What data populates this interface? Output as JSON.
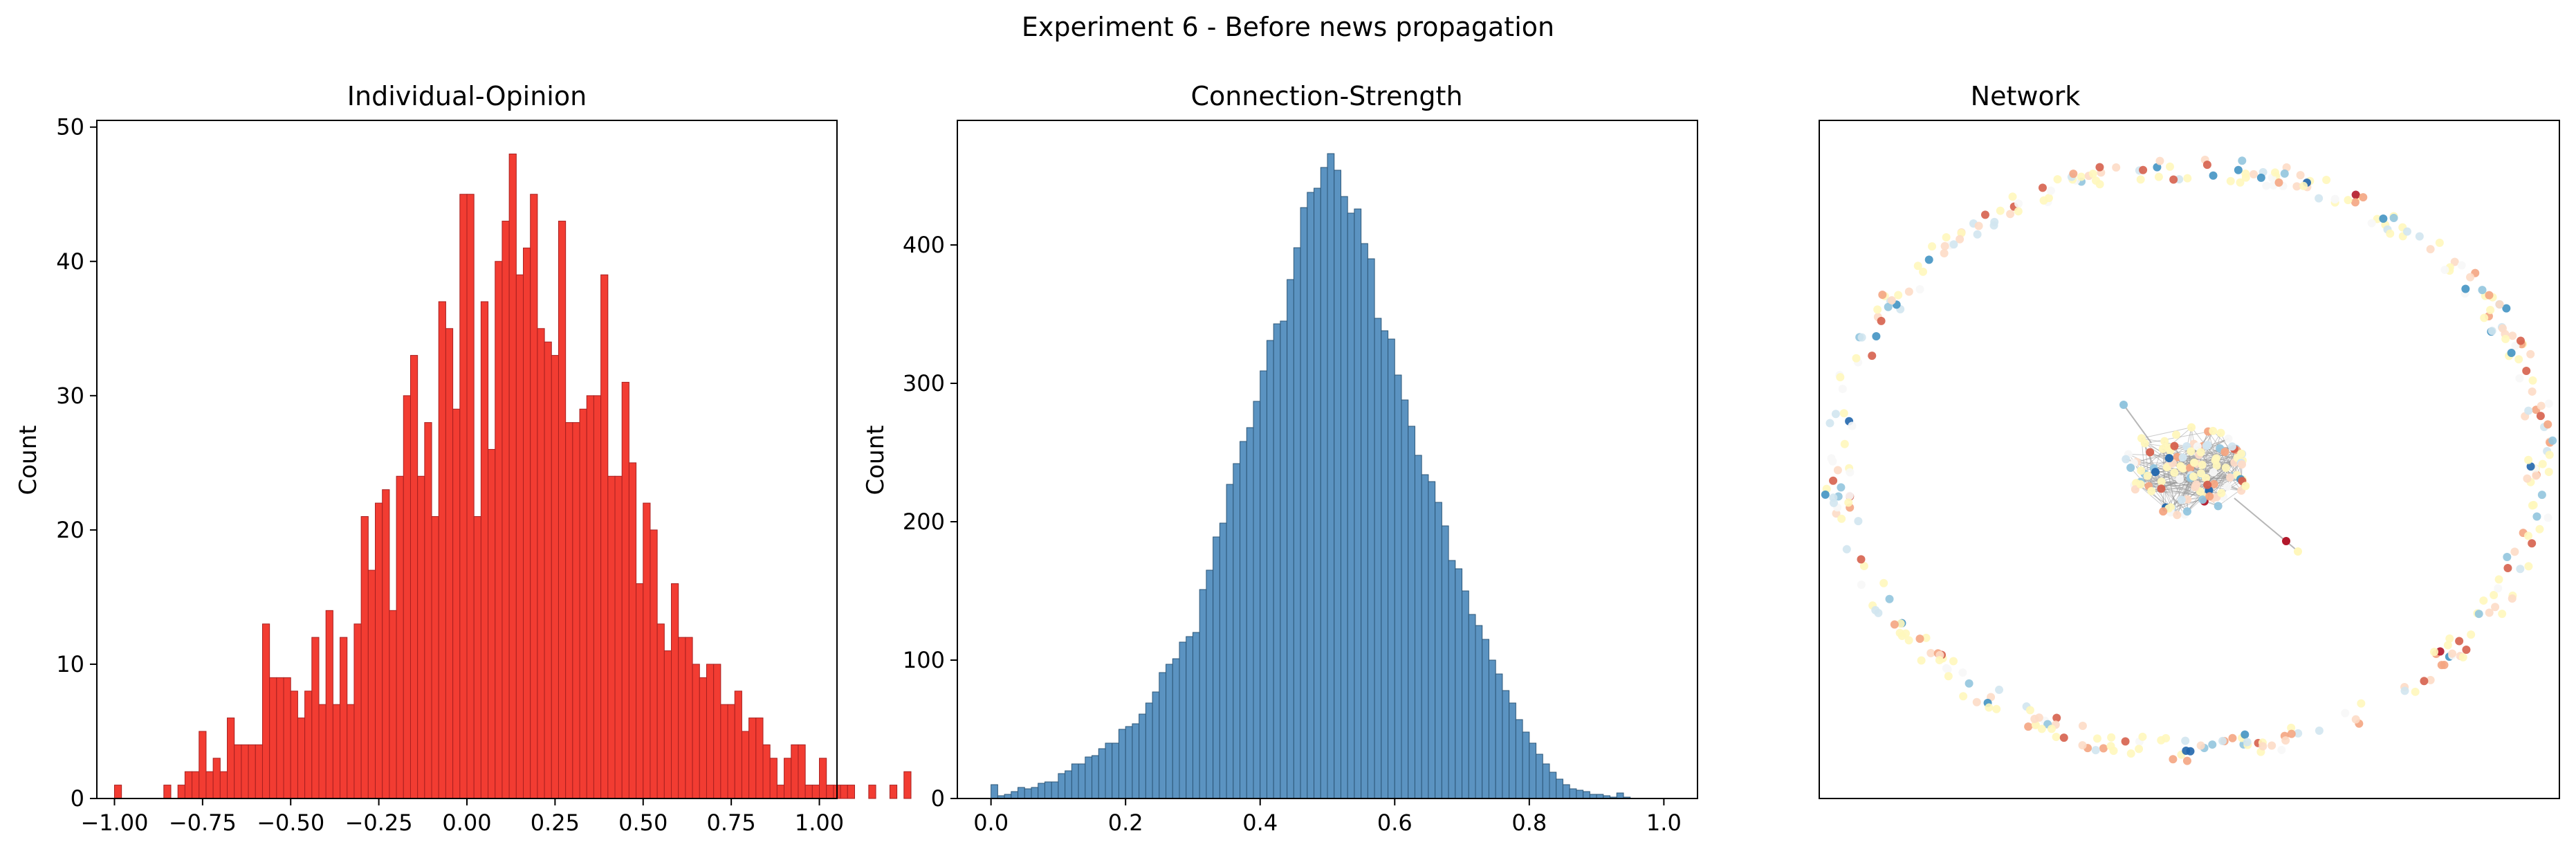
{
  "figure": {
    "suptitle": "Experiment 6 - Before news propagation"
  },
  "colors": {
    "opinion_bar": "#f23c32",
    "opinion_edge": "#a82020",
    "strength_bar": "#5b93c1",
    "strength_edge": "#2d5778",
    "network_palette": [
      "#b2182b",
      "#d6604d",
      "#f4a582",
      "#fddbc7",
      "#fff7bc",
      "#f7f7f7",
      "#d1e5f0",
      "#92c5de",
      "#4393c3",
      "#2166ac"
    ]
  },
  "chart_data": [
    {
      "type": "bar",
      "title": "Individual-Opinion",
      "xlabel": "",
      "ylabel": "Count",
      "xlim": [
        -1.05,
        1.05
      ],
      "ylim": [
        0,
        50.5
      ],
      "xticks": [
        -1.0,
        -0.75,
        -0.5,
        -0.25,
        0.0,
        0.25,
        0.5,
        0.75,
        1.0
      ],
      "xtick_labels": [
        "−1.00",
        "−0.75",
        "−0.50",
        "−0.25",
        "0.00",
        "0.25",
        "0.50",
        "0.75",
        "1.00"
      ],
      "yticks": [
        0,
        10,
        20,
        30,
        40,
        50
      ],
      "ytick_labels": [
        "0",
        "10",
        "20",
        "30",
        "40",
        "50"
      ],
      "bin_start": -1.0,
      "bin_width": 0.02,
      "values": [
        1,
        0,
        0,
        0,
        0,
        0,
        0,
        1,
        0,
        1,
        2,
        2,
        5,
        2,
        3,
        2,
        6,
        4,
        4,
        4,
        4,
        13,
        9,
        9,
        9,
        8,
        6,
        8,
        12,
        7,
        14,
        7,
        12,
        7,
        13,
        21,
        17,
        22,
        23,
        14,
        24,
        30,
        33,
        24,
        28,
        21,
        37,
        35,
        29,
        45,
        45,
        21,
        37,
        26,
        40,
        43,
        48,
        39,
        41,
        45,
        35,
        34,
        33,
        43,
        28,
        28,
        29,
        30,
        30,
        39,
        24,
        24,
        31,
        25,
        16,
        22,
        20,
        13,
        11,
        16,
        12,
        12,
        10,
        9,
        10,
        10,
        7,
        7,
        8,
        5,
        6,
        6,
        4,
        3,
        1,
        3,
        4,
        4,
        1,
        1,
        3,
        1,
        1,
        1,
        1,
        0,
        0,
        1,
        0,
        0,
        1,
        0,
        2
      ]
    },
    {
      "type": "bar",
      "title": "Connection-Strength",
      "xlabel": "",
      "ylabel": "Count",
      "xlim": [
        -0.05,
        1.05
      ],
      "ylim": [
        0,
        490
      ],
      "xticks": [
        0.0,
        0.2,
        0.4,
        0.6,
        0.8,
        1.0
      ],
      "xtick_labels": [
        "0.0",
        "0.2",
        "0.4",
        "0.6",
        "0.8",
        "1.0"
      ],
      "yticks": [
        0,
        100,
        200,
        300,
        400
      ],
      "ytick_labels": [
        "0",
        "100",
        "200",
        "300",
        "400"
      ],
      "bin_start": 0.0,
      "bin_width": 0.01,
      "values": [
        10,
        2,
        3,
        5,
        8,
        7,
        8,
        11,
        12,
        12,
        18,
        20,
        25,
        25,
        30,
        31,
        36,
        40,
        40,
        50,
        52,
        54,
        61,
        69,
        77,
        91,
        97,
        101,
        113,
        117,
        120,
        151,
        165,
        189,
        199,
        227,
        242,
        258,
        268,
        287,
        309,
        331,
        343,
        345,
        375,
        398,
        427,
        438,
        441,
        456,
        466,
        454,
        435,
        423,
        426,
        401,
        390,
        347,
        338,
        332,
        306,
        288,
        269,
        248,
        234,
        229,
        214,
        197,
        172,
        166,
        150,
        133,
        125,
        115,
        100,
        90,
        78,
        69,
        57,
        48,
        40,
        32,
        25,
        19,
        14,
        10,
        7,
        6,
        5,
        3,
        3,
        2,
        1,
        4,
        1,
        0,
        0,
        0,
        0,
        0,
        0
      ]
    },
    {
      "type": "scatter",
      "title": "Network",
      "description_visible": "",
      "axes_ticks": false
    }
  ]
}
